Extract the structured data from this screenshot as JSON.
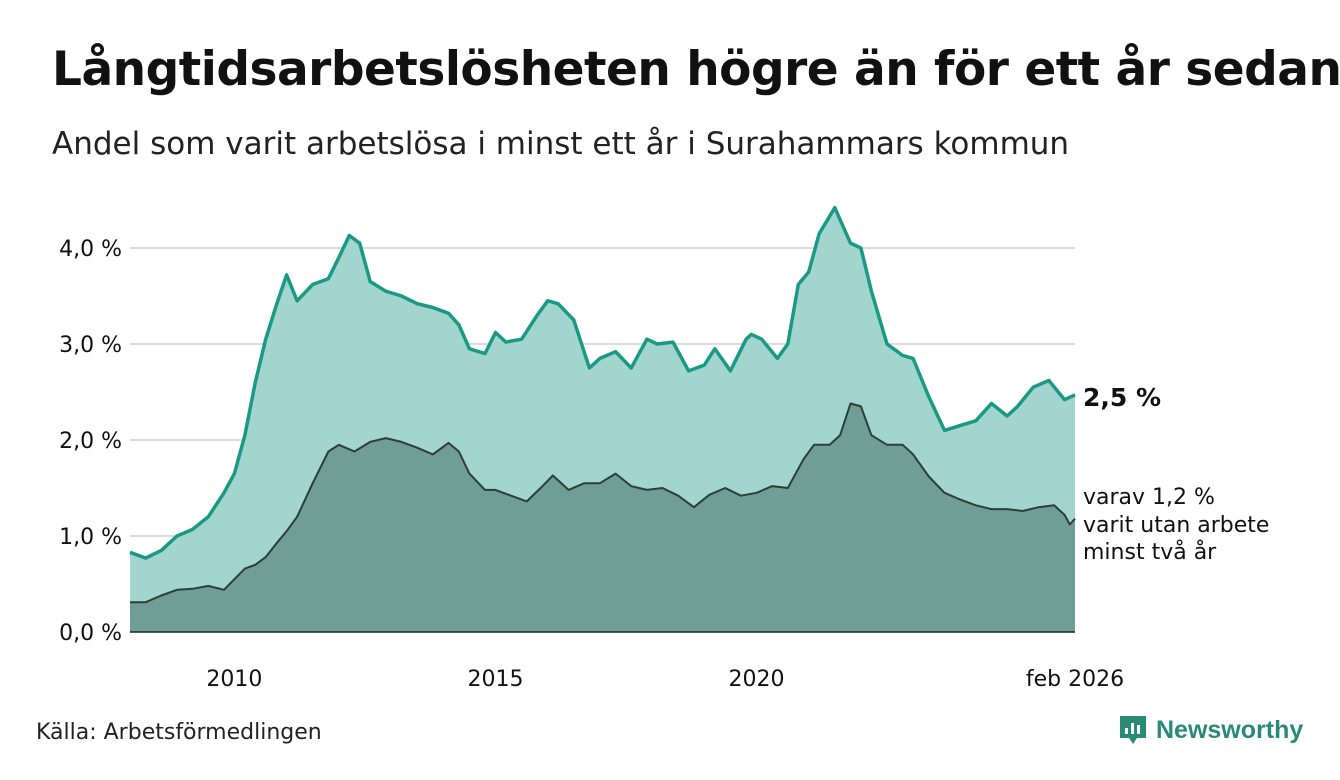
{
  "header": {
    "title": "Långtidsarbetslösheten högre än för ett år sedan",
    "subtitle": "Andel som varit arbetslösa i minst ett år i Surahammars kommun"
  },
  "footer": {
    "source": "Källa: Arbetsförmedlingen",
    "brand": "Newsworthy"
  },
  "colors": {
    "line_total": "#1a9985",
    "area_total": "#a3d5cf",
    "line_two_year": "#2e3d39",
    "area_two_year": "#6f9e97",
    "grid": "#dddddd"
  },
  "chart_data": {
    "type": "area",
    "title": "Långtidsarbetslösheten högre än för ett år sedan",
    "subtitle": "Andel som varit arbetslösa i minst ett år i Surahammars kommun",
    "x_start": 2008.0,
    "x_end": 2026.1,
    "x_ticks": [
      {
        "value": 2010,
        "label": "2010"
      },
      {
        "value": 2015,
        "label": "2015"
      },
      {
        "value": 2020,
        "label": "2020"
      },
      {
        "value": 2026.1,
        "label": "feb 2026"
      }
    ],
    "ylim": [
      0,
      4.5
    ],
    "y_ticks": [
      {
        "value": 0,
        "label": "0,0 %"
      },
      {
        "value": 1,
        "label": "1,0 %"
      },
      {
        "value": 2,
        "label": "2,0 %"
      },
      {
        "value": 3,
        "label": "3,0 %"
      },
      {
        "value": 4,
        "label": "4,0 %"
      }
    ],
    "grid": true,
    "series": [
      {
        "name": "minst ett år",
        "end_label": "2,5 %",
        "points": [
          [
            2008.0,
            0.83
          ],
          [
            2008.3,
            0.77
          ],
          [
            2008.6,
            0.85
          ],
          [
            2008.9,
            1.0
          ],
          [
            2009.2,
            1.07
          ],
          [
            2009.5,
            1.2
          ],
          [
            2009.8,
            1.45
          ],
          [
            2010.0,
            1.65
          ],
          [
            2010.2,
            2.05
          ],
          [
            2010.4,
            2.6
          ],
          [
            2010.6,
            3.05
          ],
          [
            2010.8,
            3.4
          ],
          [
            2011.0,
            3.72
          ],
          [
            2011.2,
            3.45
          ],
          [
            2011.5,
            3.62
          ],
          [
            2011.8,
            3.68
          ],
          [
            2012.0,
            3.9
          ],
          [
            2012.2,
            4.13
          ],
          [
            2012.4,
            4.05
          ],
          [
            2012.6,
            3.65
          ],
          [
            2012.9,
            3.55
          ],
          [
            2013.2,
            3.5
          ],
          [
            2013.5,
            3.42
          ],
          [
            2013.8,
            3.38
          ],
          [
            2014.1,
            3.32
          ],
          [
            2014.3,
            3.2
          ],
          [
            2014.5,
            2.95
          ],
          [
            2014.8,
            2.9
          ],
          [
            2015.0,
            3.12
          ],
          [
            2015.2,
            3.02
          ],
          [
            2015.5,
            3.05
          ],
          [
            2015.8,
            3.3
          ],
          [
            2016.0,
            3.45
          ],
          [
            2016.2,
            3.42
          ],
          [
            2016.5,
            3.25
          ],
          [
            2016.8,
            2.75
          ],
          [
            2017.0,
            2.85
          ],
          [
            2017.3,
            2.92
          ],
          [
            2017.6,
            2.75
          ],
          [
            2017.9,
            3.05
          ],
          [
            2018.1,
            3.0
          ],
          [
            2018.4,
            3.02
          ],
          [
            2018.7,
            2.72
          ],
          [
            2019.0,
            2.78
          ],
          [
            2019.2,
            2.95
          ],
          [
            2019.5,
            2.72
          ],
          [
            2019.8,
            3.05
          ],
          [
            2019.9,
            3.1
          ],
          [
            2020.1,
            3.05
          ],
          [
            2020.4,
            2.85
          ],
          [
            2020.6,
            3.0
          ],
          [
            2020.8,
            3.62
          ],
          [
            2021.0,
            3.75
          ],
          [
            2021.2,
            4.15
          ],
          [
            2021.5,
            4.42
          ],
          [
            2021.8,
            4.05
          ],
          [
            2022.0,
            4.0
          ],
          [
            2022.2,
            3.55
          ],
          [
            2022.5,
            3.0
          ],
          [
            2022.8,
            2.88
          ],
          [
            2023.0,
            2.85
          ],
          [
            2023.3,
            2.45
          ],
          [
            2023.6,
            2.1
          ],
          [
            2023.9,
            2.15
          ],
          [
            2024.2,
            2.2
          ],
          [
            2024.5,
            2.38
          ],
          [
            2024.8,
            2.25
          ],
          [
            2025.0,
            2.35
          ],
          [
            2025.3,
            2.55
          ],
          [
            2025.6,
            2.62
          ],
          [
            2025.9,
            2.42
          ],
          [
            2026.1,
            2.47
          ]
        ]
      },
      {
        "name": "varav minst två år",
        "end_label_lines": [
          "varav 1,2 %",
          "varit utan arbete",
          "minst två år"
        ],
        "points": [
          [
            2008.0,
            0.31
          ],
          [
            2008.3,
            0.31
          ],
          [
            2008.6,
            0.38
          ],
          [
            2008.9,
            0.44
          ],
          [
            2009.2,
            0.45
          ],
          [
            2009.5,
            0.48
          ],
          [
            2009.8,
            0.44
          ],
          [
            2010.0,
            0.55
          ],
          [
            2010.2,
            0.66
          ],
          [
            2010.4,
            0.7
          ],
          [
            2010.6,
            0.78
          ],
          [
            2010.8,
            0.92
          ],
          [
            2011.0,
            1.05
          ],
          [
            2011.2,
            1.2
          ],
          [
            2011.5,
            1.55
          ],
          [
            2011.8,
            1.88
          ],
          [
            2012.0,
            1.95
          ],
          [
            2012.3,
            1.88
          ],
          [
            2012.6,
            1.98
          ],
          [
            2012.9,
            2.02
          ],
          [
            2013.2,
            1.98
          ],
          [
            2013.5,
            1.92
          ],
          [
            2013.8,
            1.85
          ],
          [
            2014.1,
            1.97
          ],
          [
            2014.3,
            1.88
          ],
          [
            2014.5,
            1.65
          ],
          [
            2014.8,
            1.48
          ],
          [
            2015.0,
            1.48
          ],
          [
            2015.3,
            1.42
          ],
          [
            2015.6,
            1.36
          ],
          [
            2015.9,
            1.52
          ],
          [
            2016.1,
            1.63
          ],
          [
            2016.4,
            1.48
          ],
          [
            2016.7,
            1.55
          ],
          [
            2017.0,
            1.55
          ],
          [
            2017.3,
            1.65
          ],
          [
            2017.6,
            1.52
          ],
          [
            2017.9,
            1.48
          ],
          [
            2018.2,
            1.5
          ],
          [
            2018.5,
            1.42
          ],
          [
            2018.8,
            1.3
          ],
          [
            2019.1,
            1.43
          ],
          [
            2019.4,
            1.5
          ],
          [
            2019.7,
            1.42
          ],
          [
            2020.0,
            1.45
          ],
          [
            2020.3,
            1.52
          ],
          [
            2020.6,
            1.5
          ],
          [
            2020.9,
            1.8
          ],
          [
            2021.1,
            1.95
          ],
          [
            2021.4,
            1.95
          ],
          [
            2021.6,
            2.05
          ],
          [
            2021.8,
            2.38
          ],
          [
            2022.0,
            2.35
          ],
          [
            2022.2,
            2.05
          ],
          [
            2022.5,
            1.95
          ],
          [
            2022.8,
            1.95
          ],
          [
            2023.0,
            1.85
          ],
          [
            2023.3,
            1.62
          ],
          [
            2023.6,
            1.45
          ],
          [
            2023.9,
            1.38
          ],
          [
            2024.2,
            1.32
          ],
          [
            2024.5,
            1.28
          ],
          [
            2024.8,
            1.28
          ],
          [
            2025.1,
            1.26
          ],
          [
            2025.4,
            1.3
          ],
          [
            2025.7,
            1.32
          ],
          [
            2025.9,
            1.22
          ],
          [
            2026.0,
            1.12
          ],
          [
            2026.1,
            1.18
          ]
        ]
      }
    ]
  }
}
